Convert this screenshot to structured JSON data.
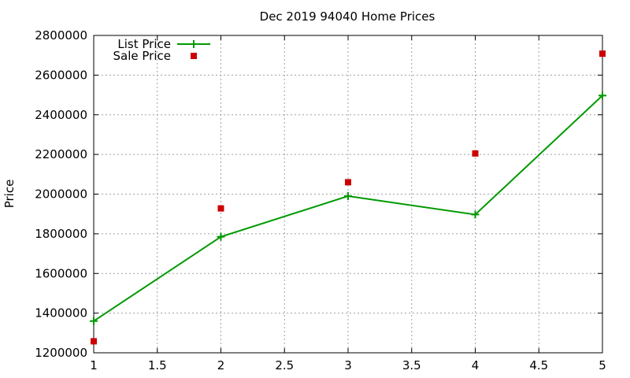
{
  "chart_data": {
    "type": "line",
    "title": "Dec 2019 94040 Home Prices",
    "xlabel": "",
    "ylabel": "Price",
    "xlim": [
      1,
      5
    ],
    "ylim": [
      1200000,
      2800000
    ],
    "x_ticks": [
      "1",
      "1.5",
      "2",
      "2.5",
      "3",
      "3.5",
      "4",
      "4.5",
      "5"
    ],
    "y_ticks": [
      "1200000",
      "1400000",
      "1600000",
      "1800000",
      "2000000",
      "2200000",
      "2400000",
      "2600000",
      "2800000"
    ],
    "grid": true,
    "legend_position": "top-left",
    "series": [
      {
        "name": "List Price",
        "style": "line-plus",
        "color": "#009900",
        "x": [
          1,
          2,
          3,
          4,
          5
        ],
        "y": [
          1360000,
          1785000,
          1990000,
          1897000,
          2497000
        ]
      },
      {
        "name": "Sale Price",
        "style": "square-points",
        "color": "#cc0000",
        "x": [
          1,
          2,
          3,
          4,
          5
        ],
        "y": [
          1258000,
          1928000,
          2060000,
          2205000,
          2708000
        ]
      }
    ]
  }
}
